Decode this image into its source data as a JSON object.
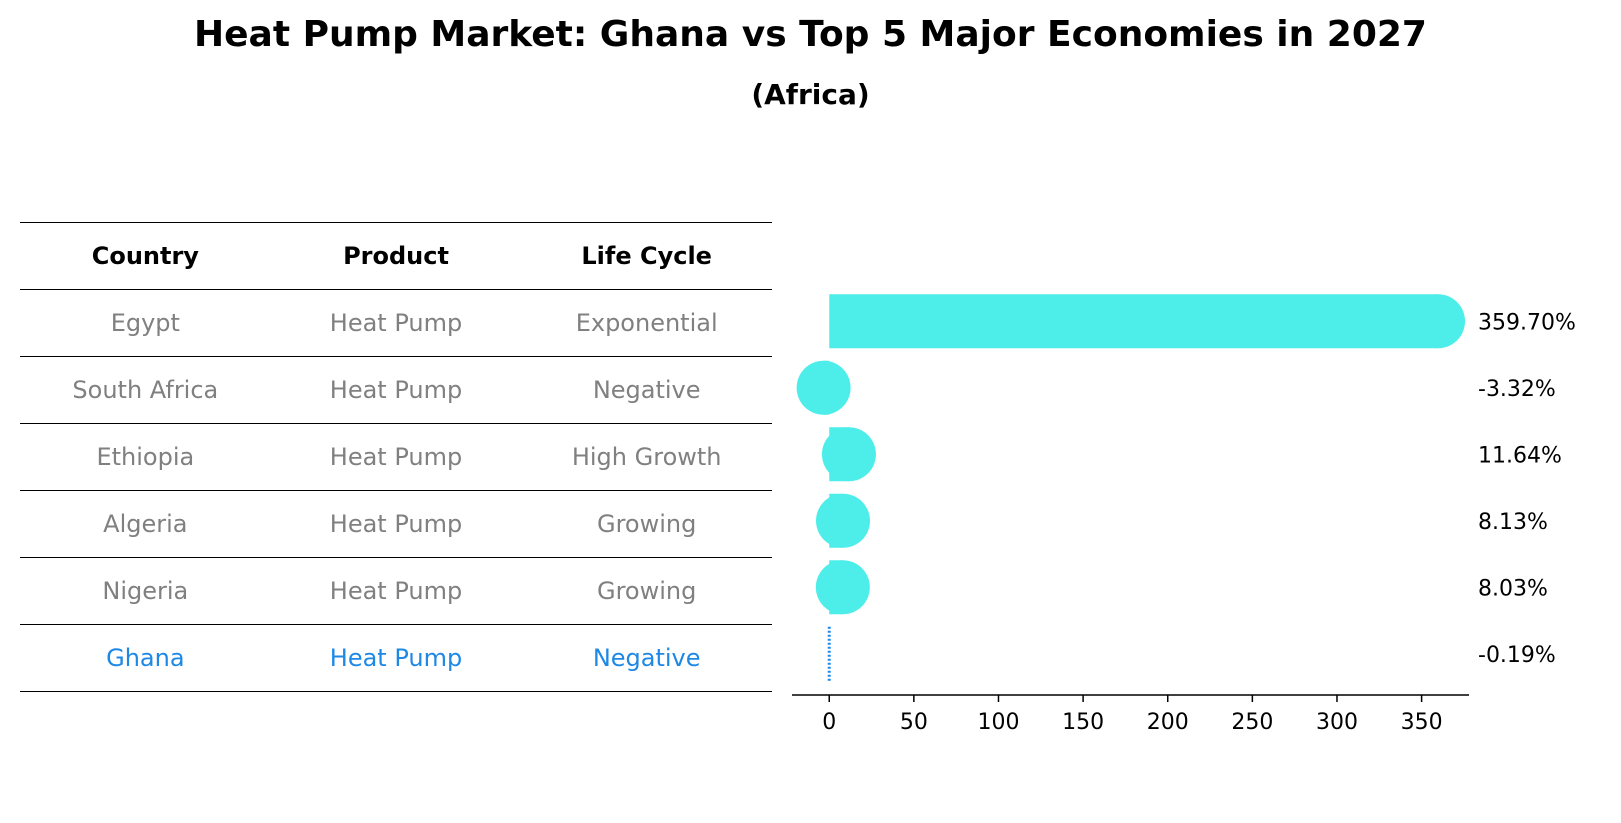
{
  "chart_data": {
    "type": "bar",
    "title": "Heat Pump Market: Ghana vs Top 5 Major Economies in 2027",
    "subtitle": "(Africa)",
    "table": {
      "headers": [
        "Country",
        "Product",
        "Life Cycle"
      ],
      "rows": [
        [
          "Egypt",
          "Heat Pump",
          "Exponential"
        ],
        [
          "South Africa",
          "Heat Pump",
          "Negative"
        ],
        [
          "Ethiopia",
          "Heat Pump",
          "High Growth"
        ],
        [
          "Algeria",
          "Heat Pump",
          "Growing"
        ],
        [
          "Nigeria",
          "Heat Pump",
          "Growing"
        ],
        [
          "Ghana",
          "Heat Pump",
          "Negative"
        ]
      ],
      "highlight_row": "Ghana"
    },
    "categories": [
      "Egypt",
      "South Africa",
      "Ethiopia",
      "Algeria",
      "Nigeria",
      "Ghana"
    ],
    "values": [
      359.7,
      -3.32,
      11.64,
      8.13,
      8.03,
      -0.19
    ],
    "value_labels": [
      "359.70%",
      "-3.32%",
      "11.64%",
      "8.13%",
      "8.03%",
      "-0.19%"
    ],
    "xticks": [
      0,
      50,
      100,
      150,
      200,
      250,
      300,
      350
    ],
    "xlim": [
      -22,
      378
    ],
    "xlabel": "",
    "ylabel": "",
    "colors": {
      "bar": "#4deeea",
      "highlight": "#1e88e5",
      "table_text": "#808080"
    }
  }
}
